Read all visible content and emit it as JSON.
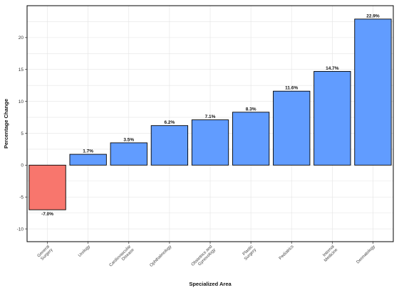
{
  "chart_data": {
    "type": "bar",
    "title": "",
    "xlabel": "Specialized Area",
    "ylabel": "Percentage Change",
    "ylim": [
      -12,
      25
    ],
    "yticks": [
      -10,
      -5,
      0,
      5,
      10,
      15,
      20
    ],
    "grid": true,
    "legend": "none",
    "categories": [
      "General\nSurgery",
      "Urology",
      "Cardiovascular\nDisease",
      "Ophthalmology",
      "Obstetrics and\nGynecology",
      "Plastic\nSurgery",
      "Pediatrics",
      "Internal\nMedicine",
      "Dermatology"
    ],
    "values": [
      -7.0,
      1.7,
      3.5,
      6.2,
      7.1,
      8.3,
      11.6,
      14.7,
      22.9
    ],
    "data_labels": [
      "-7.0%",
      "1.7%",
      "3.5%",
      "6.2%",
      "7.1%",
      "8.3%",
      "11.6%",
      "14.7%",
      "22.9%"
    ],
    "colors": {
      "negative": "#F8766D",
      "positive": "#619CFF"
    }
  }
}
